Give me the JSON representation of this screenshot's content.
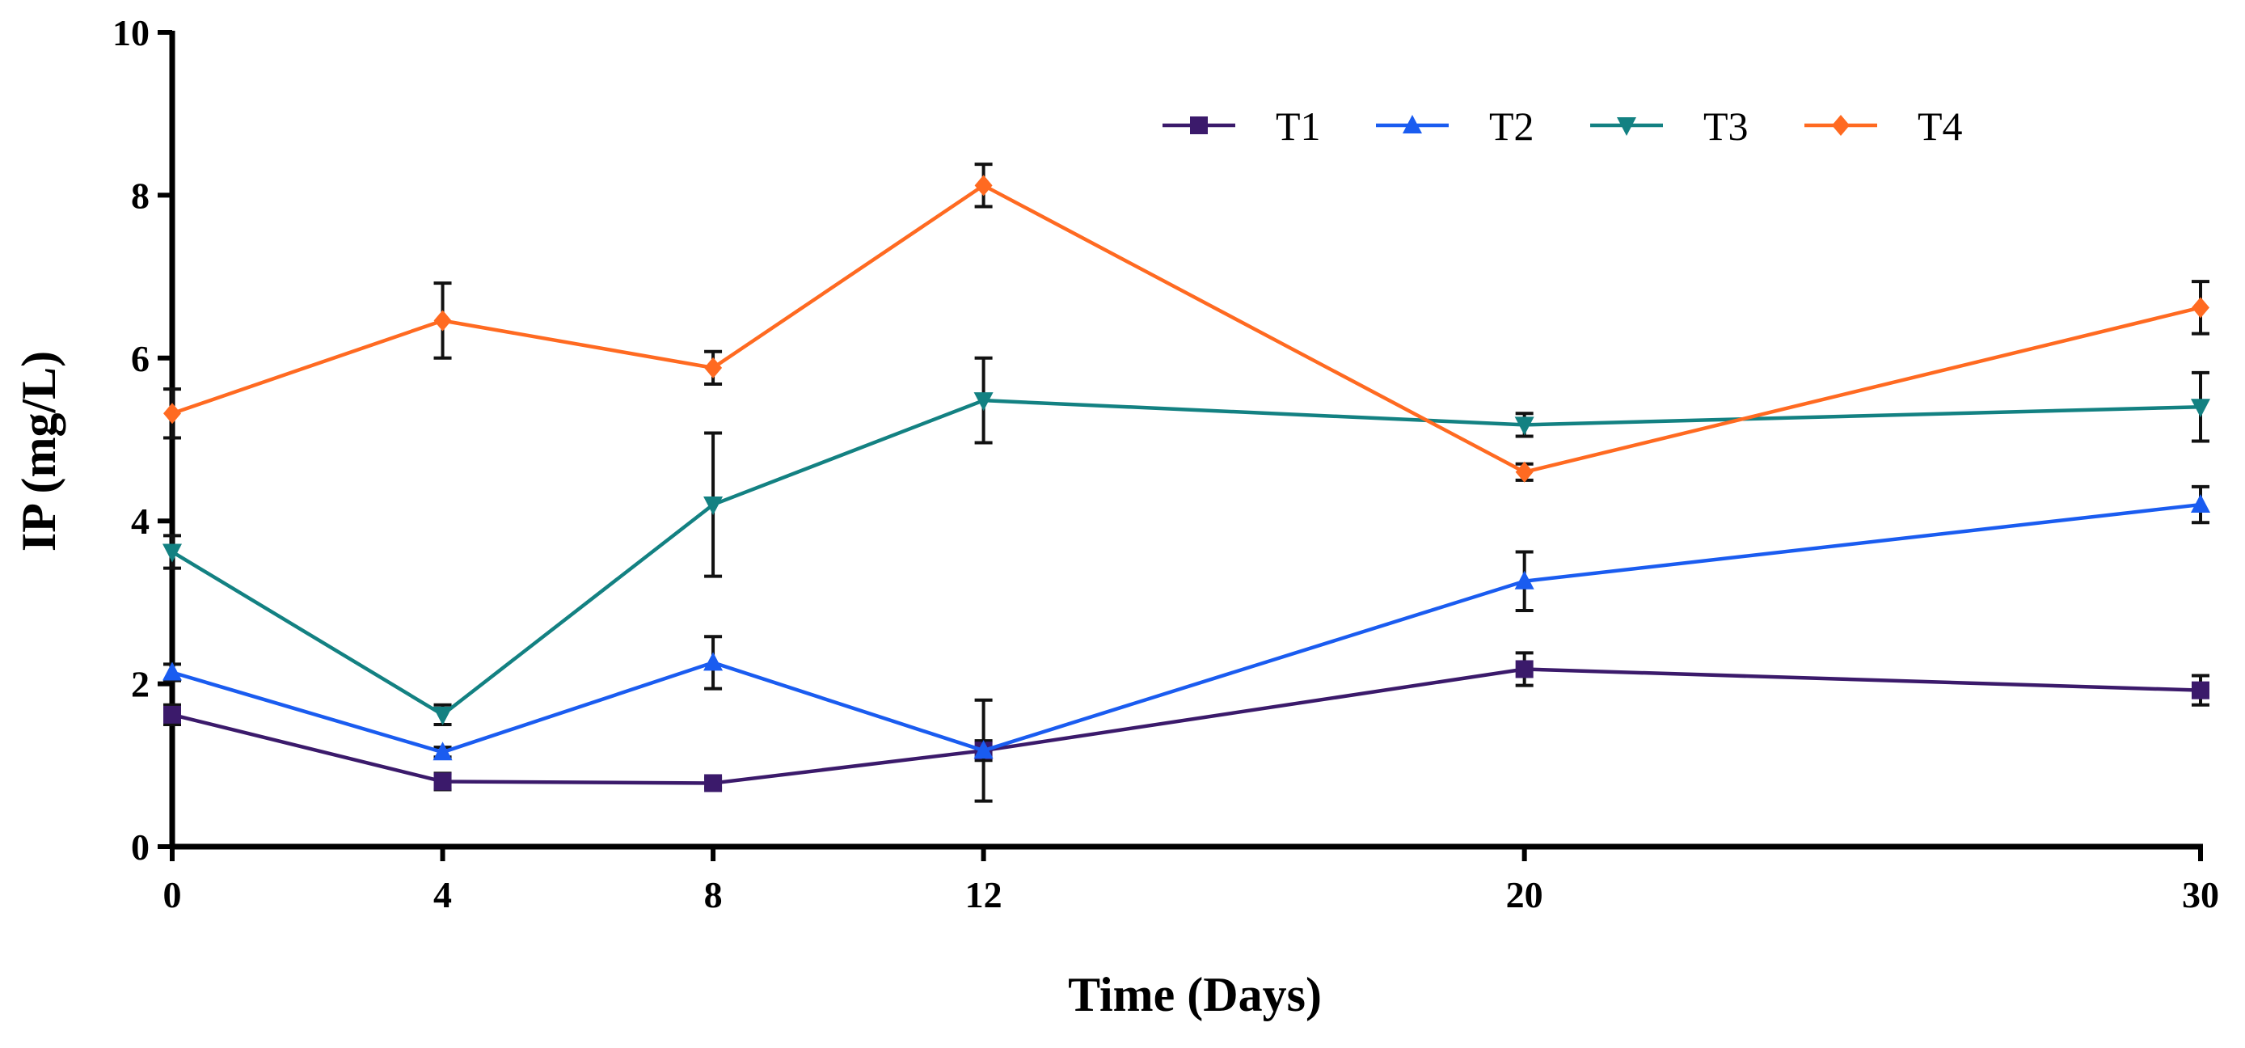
{
  "chart_data": {
    "type": "line",
    "title": "",
    "xlabel": "Time (Days)",
    "ylabel": "IP (mg/L)",
    "xlim": [
      0,
      30
    ],
    "ylim": [
      0,
      10
    ],
    "x": [
      0,
      4,
      8,
      12,
      20,
      30
    ],
    "x_ticks": [
      0,
      4,
      8,
      12,
      20,
      30
    ],
    "y_ticks": [
      0,
      2,
      4,
      6,
      8,
      10
    ],
    "grid": false,
    "legend_position": "top-right",
    "series": [
      {
        "name": "T1",
        "color": "#3b1a6b",
        "marker": "square",
        "values": [
          1.62,
          0.8,
          0.78,
          1.18,
          2.18,
          1.92
        ],
        "errors": [
          0.12,
          0.1,
          0.06,
          0.12,
          0.2,
          0.18
        ]
      },
      {
        "name": "T2",
        "color": "#1a5cf0",
        "marker": "triangle-up",
        "values": [
          2.14,
          1.16,
          2.26,
          1.18,
          3.26,
          4.2
        ],
        "errors": [
          0.1,
          0.06,
          0.32,
          0.62,
          0.36,
          0.22
        ]
      },
      {
        "name": "T3",
        "color": "#138182",
        "marker": "triangle-down",
        "values": [
          3.62,
          1.62,
          4.2,
          5.48,
          5.18,
          5.4
        ],
        "errors": [
          0.2,
          0.12,
          0.88,
          0.52,
          0.14,
          0.42
        ]
      },
      {
        "name": "T4",
        "color": "#ff6a21",
        "marker": "diamond",
        "values": [
          5.32,
          6.46,
          5.88,
          8.12,
          4.6,
          6.62
        ],
        "errors": [
          0.3,
          0.46,
          0.2,
          0.26,
          0.1,
          0.32
        ]
      }
    ]
  }
}
